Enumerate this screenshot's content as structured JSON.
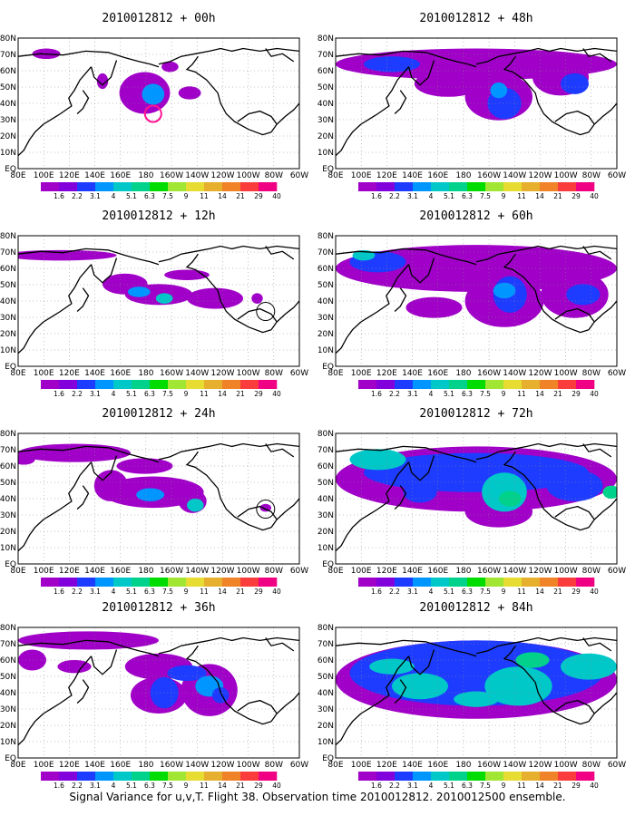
{
  "caption": "Signal Variance for u,v,T. Flight 38. Observation time 2010012812. 2010012500 ensemble.",
  "y_ticks": [
    "80N",
    "70N",
    "60N",
    "50N",
    "40N",
    "30N",
    "20N",
    "10N",
    "EQ"
  ],
  "x_ticks": [
    "80E",
    "100E",
    "120E",
    "140E",
    "160E",
    "180",
    "160W",
    "140W",
    "120W",
    "100W",
    "80W",
    "60W"
  ],
  "colorbar": {
    "labels": [
      "1.6",
      "2.2",
      "3.1",
      "4",
      "5.1",
      "6.3",
      "7.5",
      "9",
      "11",
      "14",
      "21",
      "29",
      "40"
    ],
    "colors": [
      "#a000c8",
      "#8200dc",
      "#1e3cff",
      "#0096ff",
      "#00c8c8",
      "#00d28c",
      "#00dc00",
      "#a0e632",
      "#e6dc32",
      "#e6af2d",
      "#f08228",
      "#fa3c3c",
      "#f00082"
    ]
  },
  "panels": [
    {
      "title": "2010012812 + 00h",
      "lead_hours": 0
    },
    {
      "title": "2010012812 + 48h",
      "lead_hours": 48
    },
    {
      "title": "2010012812 + 12h",
      "lead_hours": 12
    },
    {
      "title": "2010012812 + 60h",
      "lead_hours": 60
    },
    {
      "title": "2010012812 + 24h",
      "lead_hours": 24
    },
    {
      "title": "2010012812 + 72h",
      "lead_hours": 72
    },
    {
      "title": "2010012812 + 36h",
      "lead_hours": 36
    },
    {
      "title": "2010012812 + 84h",
      "lead_hours": 84
    }
  ]
}
